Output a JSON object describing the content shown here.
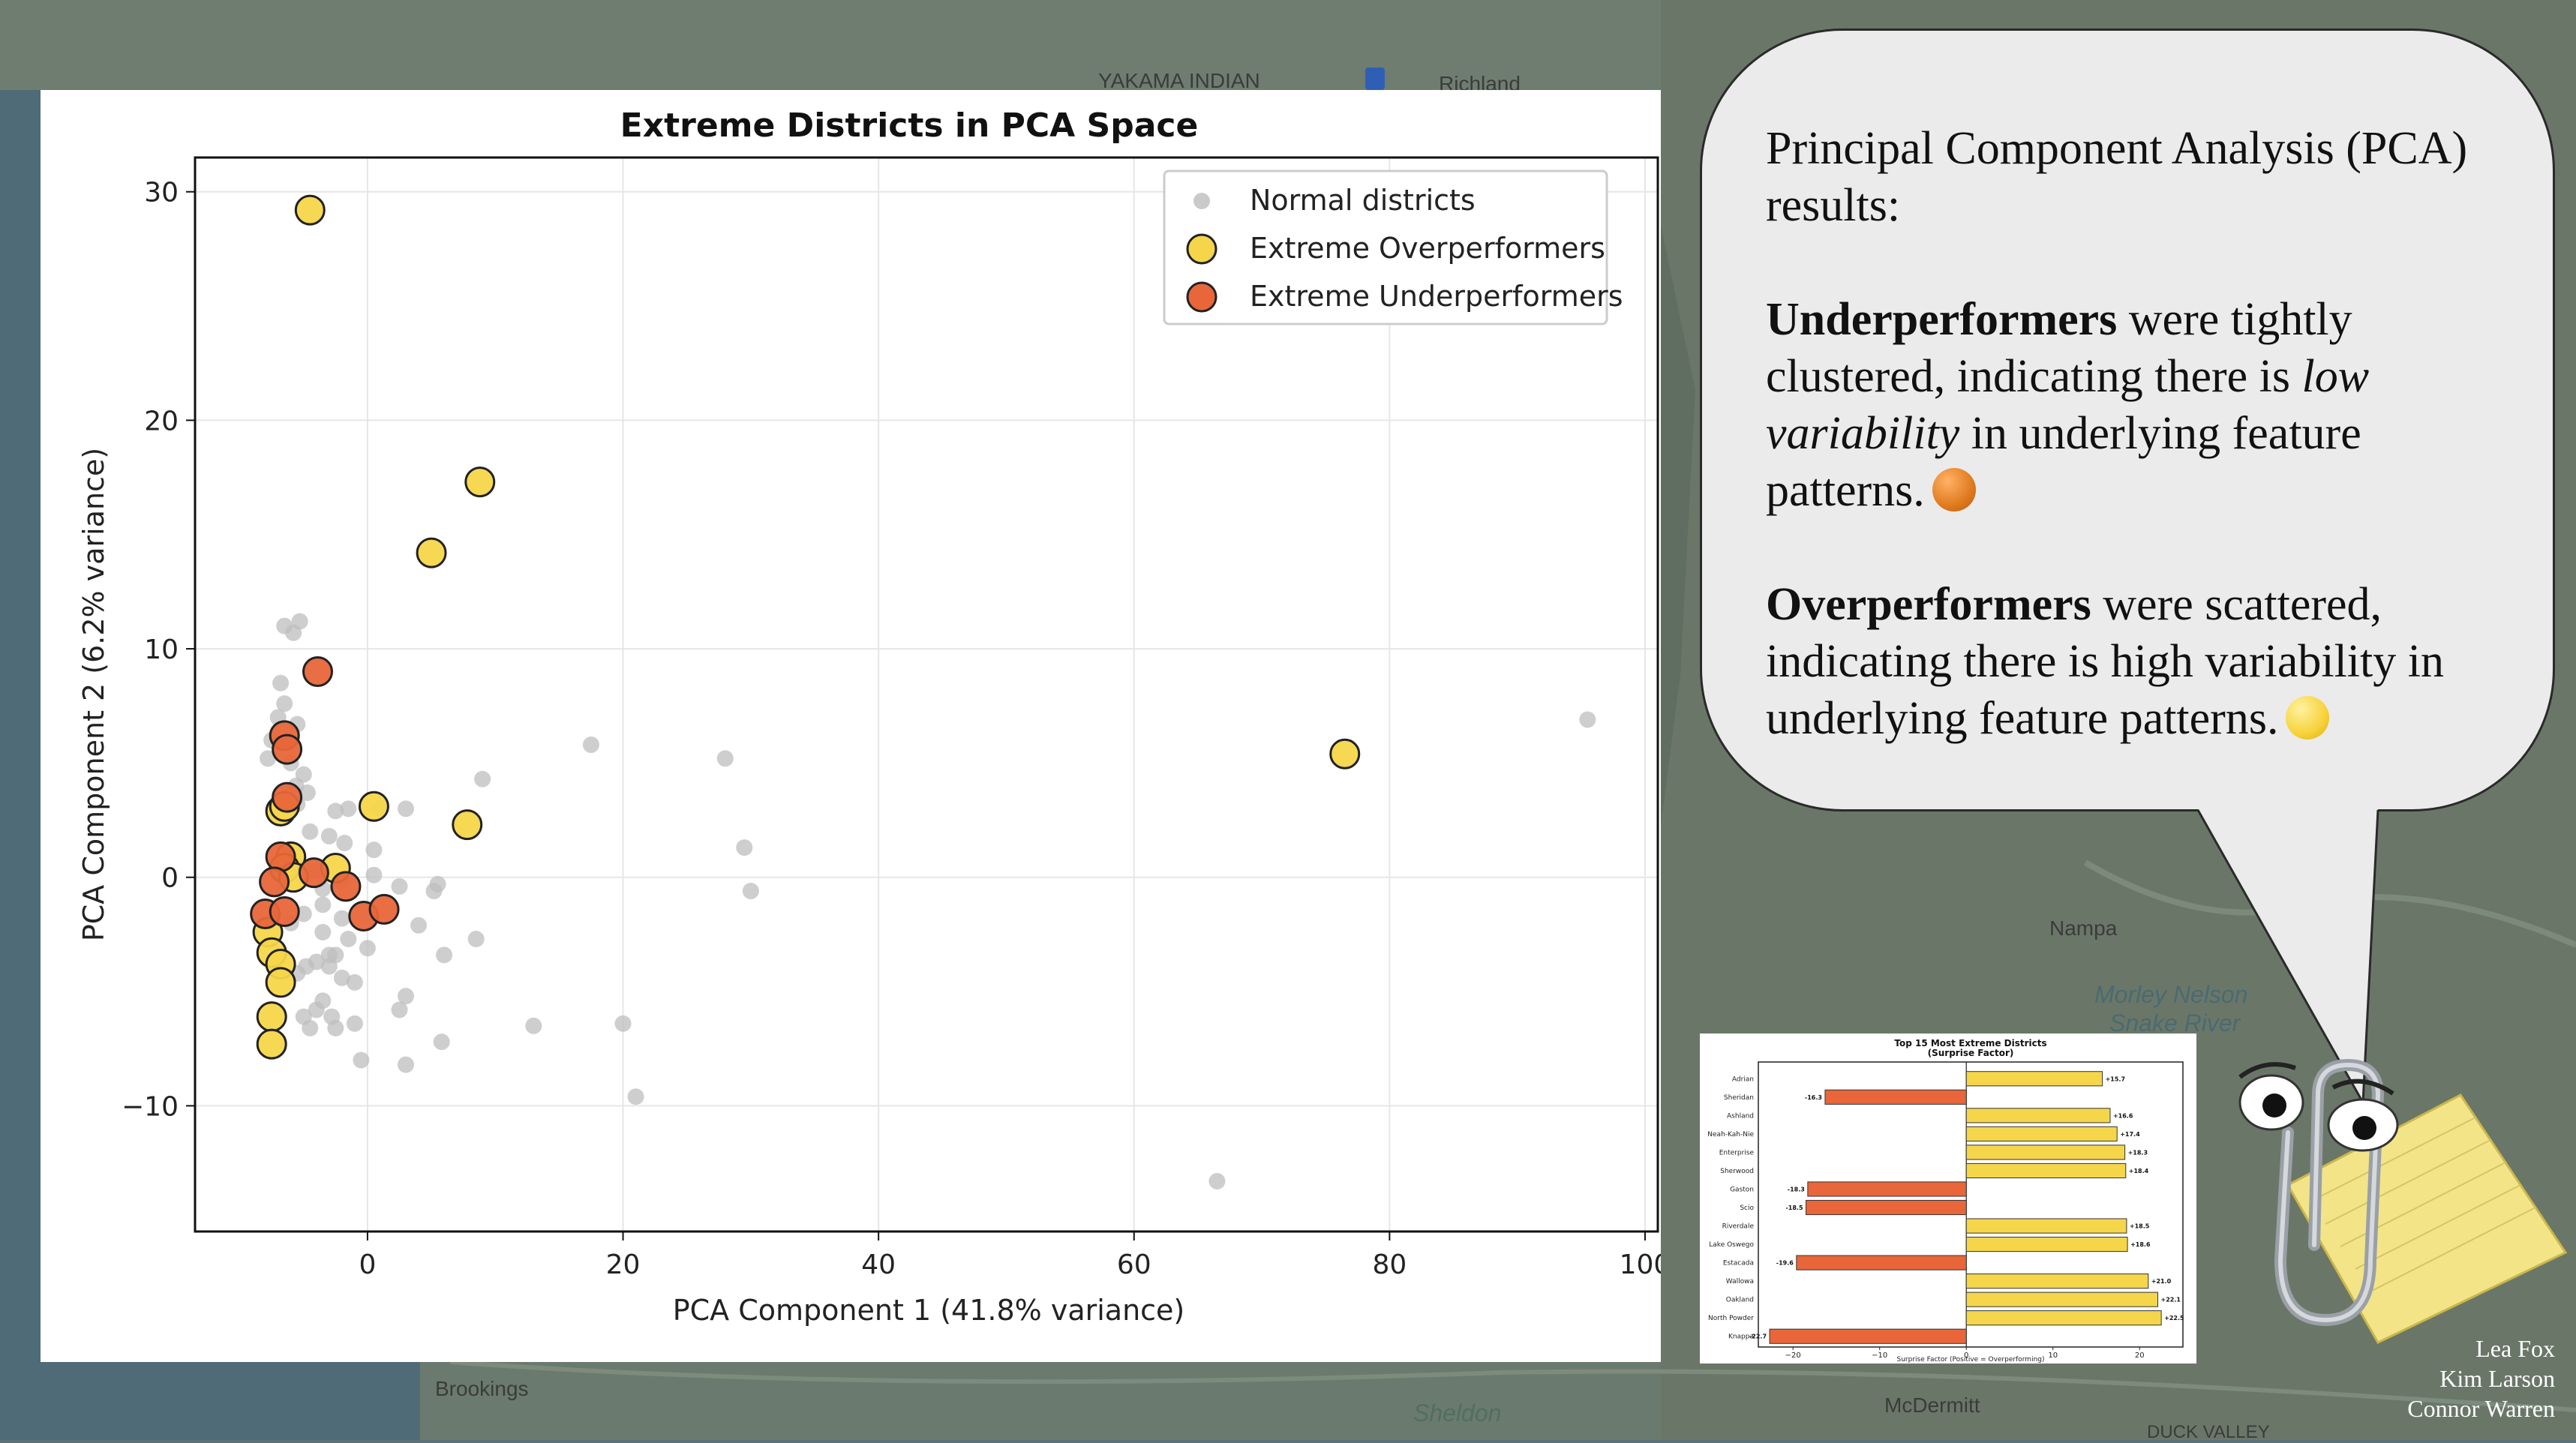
{
  "map": {
    "labels": [
      {
        "text": "YAKAMA INDIAN",
        "x": 0.0,
        "cls": "top1"
      },
      {
        "text": "Richland",
        "x": 0.0,
        "cls": "top2"
      },
      {
        "text": "Nampa",
        "x": 0.0,
        "cls": "nampa"
      },
      {
        "text": "Morley Nelson",
        "x": 0.0,
        "cls": "mn1"
      },
      {
        "text": "Snake River",
        "x": 0.0,
        "cls": "mn2"
      },
      {
        "text": "Brookings",
        "x": 0.0,
        "cls": "brook"
      },
      {
        "text": "Sheldon",
        "x": 0.0,
        "cls": "shel"
      },
      {
        "text": "McDermitt",
        "x": 0.0,
        "cls": "mcd"
      },
      {
        "text": "DUCK VALLEY",
        "x": 0.0,
        "cls": "duck"
      }
    ]
  },
  "chart_data": [
    {
      "type": "scatter",
      "title": "Extreme Districts in PCA Space",
      "xlabel": "PCA Component 1 (41.8% variance)",
      "ylabel": "PCA Component 2 (6.2% variance)",
      "xlim": [
        -13.5,
        101
      ],
      "ylim": [
        -15.5,
        31.5
      ],
      "xticks": [
        0,
        20,
        40,
        60,
        80,
        100
      ],
      "yticks": [
        -10,
        0,
        10,
        20,
        30
      ],
      "grid": true,
      "legend_position": "top-right",
      "colors": {
        "normal": "#bdbdbd",
        "over": "#f5d64a",
        "under": "#e8663a"
      },
      "series": [
        {
          "name": "Normal districts",
          "role": "normal",
          "points": [
            [
              -6.5,
              11
            ],
            [
              -5.3,
              11.2
            ],
            [
              -5.8,
              10.7
            ],
            [
              -6.8,
              8.5
            ],
            [
              -6.5,
              7.6
            ],
            [
              -7,
              7
            ],
            [
              -7.5,
              6
            ],
            [
              -5.5,
              6.7
            ],
            [
              -7.8,
              5.2
            ],
            [
              -6,
              5
            ],
            [
              -5,
              4.5
            ],
            [
              -5.6,
              4
            ],
            [
              -4.7,
              3.7
            ],
            [
              -6.3,
              3.5
            ],
            [
              -5.5,
              3.2
            ],
            [
              -2.5,
              2.9
            ],
            [
              -1.5,
              3
            ],
            [
              1,
              3
            ],
            [
              3,
              3
            ],
            [
              -4.5,
              2
            ],
            [
              -3,
              1.8
            ],
            [
              -1.8,
              1.5
            ],
            [
              0.5,
              1.2
            ],
            [
              -6.5,
              0.5
            ],
            [
              -7,
              0.2
            ],
            [
              -5,
              0.1
            ],
            [
              -4,
              0.3
            ],
            [
              -3.5,
              -0.5
            ],
            [
              -2,
              -0.2
            ],
            [
              0.5,
              0.1
            ],
            [
              2.5,
              -0.4
            ],
            [
              5.5,
              -0.3
            ],
            [
              5.2,
              -0.6
            ],
            [
              -3.5,
              -1.2
            ],
            [
              -5,
              -1.6
            ],
            [
              -6,
              -2
            ],
            [
              -2,
              -1.8
            ],
            [
              -3.5,
              -2.4
            ],
            [
              -1.5,
              -2.7
            ],
            [
              0,
              -3.1
            ],
            [
              -2.5,
              -3.4
            ],
            [
              -3,
              -3.4
            ],
            [
              -4,
              -3.7
            ],
            [
              -4.8,
              -3.9
            ],
            [
              -5.5,
              -4.2
            ],
            [
              -3,
              -3.9
            ],
            [
              -2,
              -4.4
            ],
            [
              -1,
              -4.6
            ],
            [
              -3.5,
              -5.4
            ],
            [
              -4,
              -5.8
            ],
            [
              -5,
              -6.1
            ],
            [
              -2.8,
              -6.1
            ],
            [
              -4.5,
              -6.6
            ],
            [
              -2.5,
              -6.6
            ],
            [
              -1,
              -6.4
            ],
            [
              3,
              -5.2
            ],
            [
              2.5,
              -5.8
            ],
            [
              4,
              -2.1
            ],
            [
              6,
              -3.4
            ],
            [
              8.5,
              -2.7
            ],
            [
              9,
              4.3
            ],
            [
              17.5,
              5.8
            ],
            [
              28,
              5.2
            ],
            [
              29.5,
              1.3
            ],
            [
              30,
              -0.6
            ],
            [
              -0.5,
              -8
            ],
            [
              3,
              -8.2
            ],
            [
              5.8,
              -7.2
            ],
            [
              13,
              -6.5
            ],
            [
              20,
              -6.4
            ],
            [
              21,
              -9.6
            ],
            [
              66.5,
              -13.3
            ],
            [
              95.5,
              6.9
            ]
          ]
        },
        {
          "name": "Extreme Overperformers",
          "role": "over",
          "points": [
            [
              -4.5,
              29.2
            ],
            [
              8.8,
              17.3
            ],
            [
              5,
              14.2
            ],
            [
              0.5,
              3.1
            ],
            [
              7.8,
              2.3
            ],
            [
              76.5,
              5.4
            ],
            [
              -6.8,
              2.9
            ],
            [
              -6.5,
              3.1
            ],
            [
              -6,
              0.9
            ],
            [
              -6.5,
              0.4
            ],
            [
              -5.8,
              0
            ],
            [
              -2.5,
              0.4
            ],
            [
              -7.8,
              -2.4
            ],
            [
              -7.5,
              -3.3
            ],
            [
              -6.8,
              -3.8
            ],
            [
              -6.8,
              -4.6
            ],
            [
              -7.5,
              -6.1
            ],
            [
              -7.5,
              -7.3
            ]
          ]
        },
        {
          "name": "Extreme Underperformers",
          "role": "under",
          "points": [
            [
              -3.9,
              9
            ],
            [
              -6.5,
              6.2
            ],
            [
              -6.3,
              5.6
            ],
            [
              -6.3,
              3.5
            ],
            [
              -6.8,
              0.9
            ],
            [
              -4.2,
              0.2
            ],
            [
              -7.3,
              -0.2
            ],
            [
              -1.7,
              -0.4
            ],
            [
              -8,
              -1.6
            ],
            [
              -6.5,
              -1.5
            ],
            [
              -0.3,
              -1.7
            ],
            [
              1.3,
              -1.4
            ]
          ]
        }
      ]
    },
    {
      "type": "bar",
      "orientation": "horizontal",
      "title": "Top 15 Most Extreme Districts",
      "subtitle": "(Surprise Factor)",
      "xlabel": "Surprise Factor (Positive = Overperforming)",
      "xlim": [
        -24,
        25
      ],
      "xticks": [
        -20,
        -10,
        0,
        10,
        20
      ],
      "categories": [
        "Adrian",
        "Sheridan",
        "Ashland",
        "Neah-Kah-Nie",
        "Enterprise",
        "Sherwood",
        "Gaston",
        "Scio",
        "Riverdale",
        "Lake Oswego",
        "Estacada",
        "Wallowa",
        "Oakland",
        "North Powder",
        "Knappa"
      ],
      "values": [
        15.7,
        -16.3,
        16.6,
        17.4,
        18.3,
        18.4,
        -18.3,
        -18.5,
        18.5,
        18.6,
        -19.6,
        21.0,
        22.1,
        22.5,
        -22.7
      ],
      "labels": [
        "+15.7",
        "-16.3",
        "+16.6",
        "+17.4",
        "+18.3",
        "+18.4",
        "-18.3",
        "-18.5",
        "+18.5",
        "+18.6",
        "-19.6",
        "+21.0",
        "+22.1",
        "+22.5",
        "-22.7"
      ]
    }
  ],
  "bubble": {
    "line1": "Principal Component Analysis (PCA) results:",
    "under_bold": "Underperformers",
    "under_rest1": " were tightly clustered, indicating there is ",
    "under_italic": "low variability",
    "under_rest2": " in underlying feature patterns.",
    "over_bold": "Overperformers",
    "over_rest": " were scattered, indicating there is high variability in underlying feature patterns."
  },
  "credits": [
    "Lea Fox",
    "Kim Larson",
    "Connor Warren"
  ]
}
